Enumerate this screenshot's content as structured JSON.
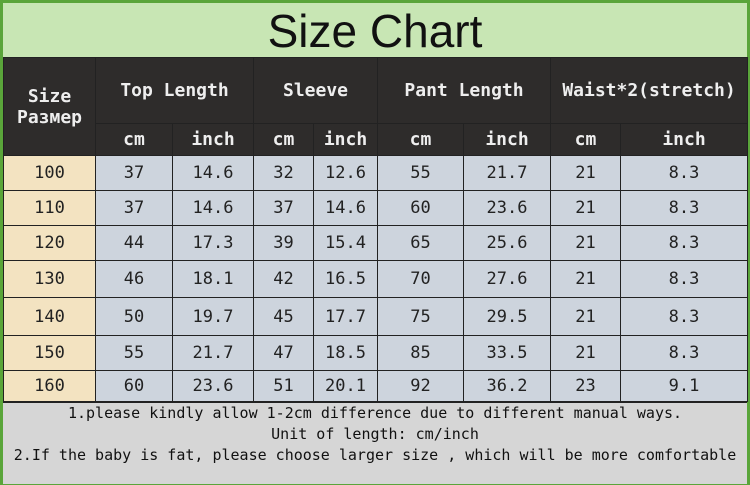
{
  "title": "Size Chart",
  "headers": {
    "size": "Size",
    "size_ru": "Размер",
    "top_length": "Top Length",
    "sleeve": "Sleeve",
    "pant_length": "Pant Length",
    "waist": "Waist*2(stretch)",
    "cm": "cm",
    "inch": "inch"
  },
  "rows": [
    [
      "100",
      "37",
      "14.6",
      "32",
      "12.6",
      "55",
      "21.7",
      "21",
      "8.3"
    ],
    [
      "110",
      "37",
      "14.6",
      "37",
      "14.6",
      "60",
      "23.6",
      "21",
      "8.3"
    ],
    [
      "120",
      "44",
      "17.3",
      "39",
      "15.4",
      "65",
      "25.6",
      "21",
      "8.3"
    ],
    [
      "130",
      "46",
      "18.1",
      "42",
      "16.5",
      "70",
      "27.6",
      "21",
      "8.3"
    ],
    [
      "140",
      "50",
      "19.7",
      "45",
      "17.7",
      "75",
      "29.5",
      "21",
      "8.3"
    ],
    [
      "150",
      "55",
      "21.7",
      "47",
      "18.5",
      "85",
      "33.5",
      "21",
      "8.3"
    ],
    [
      "160",
      "60",
      "23.6",
      "51",
      "20.1",
      "92",
      "36.2",
      "23",
      "9.1"
    ]
  ],
  "notes": [
    "1.please kindly allow 1-2cm difference due to different manual ways.",
    "Unit of length: cm/inch",
    "2.If the baby is fat, please choose larger size , which will be more comfortable"
  ],
  "colors": {
    "border": "#5aa53a",
    "title_bg": "#c8e6b4",
    "header_bg": "#2e2c2b",
    "cell_bg": "#cdd4dd",
    "size_bg": "#f3e3c1",
    "notes_bg": "#d6d6d6"
  }
}
